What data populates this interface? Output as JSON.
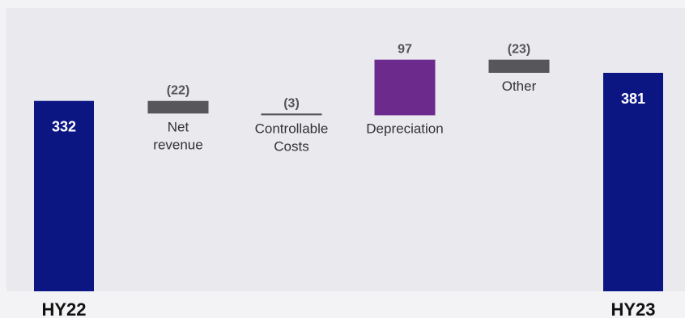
{
  "colors": {
    "total": "#0c1683",
    "negative": "#57575b",
    "positive": "#6b2a8c"
  },
  "chart_data": {
    "type": "bar",
    "subtype": "waterfall",
    "categories": [
      "HY22",
      "Net revenue",
      "Controllable Costs",
      "Depreciation",
      "Other",
      "HY23"
    ],
    "values": [
      332,
      -22,
      -3,
      97,
      -23,
      381
    ],
    "value_labels": [
      "332",
      "(22)",
      "(3)",
      "97",
      "(23)",
      "381"
    ],
    "kinds": [
      "total",
      "delta",
      "delta",
      "delta",
      "delta",
      "total"
    ],
    "category_lines": [
      [
        "HY22"
      ],
      [
        "Net",
        "revenue"
      ],
      [
        "Controllable",
        "Costs"
      ],
      [
        "Depreciation"
      ],
      [
        "Other"
      ],
      [
        "HY23"
      ]
    ],
    "title": "",
    "xlabel": "",
    "ylabel": "",
    "grid": false
  }
}
